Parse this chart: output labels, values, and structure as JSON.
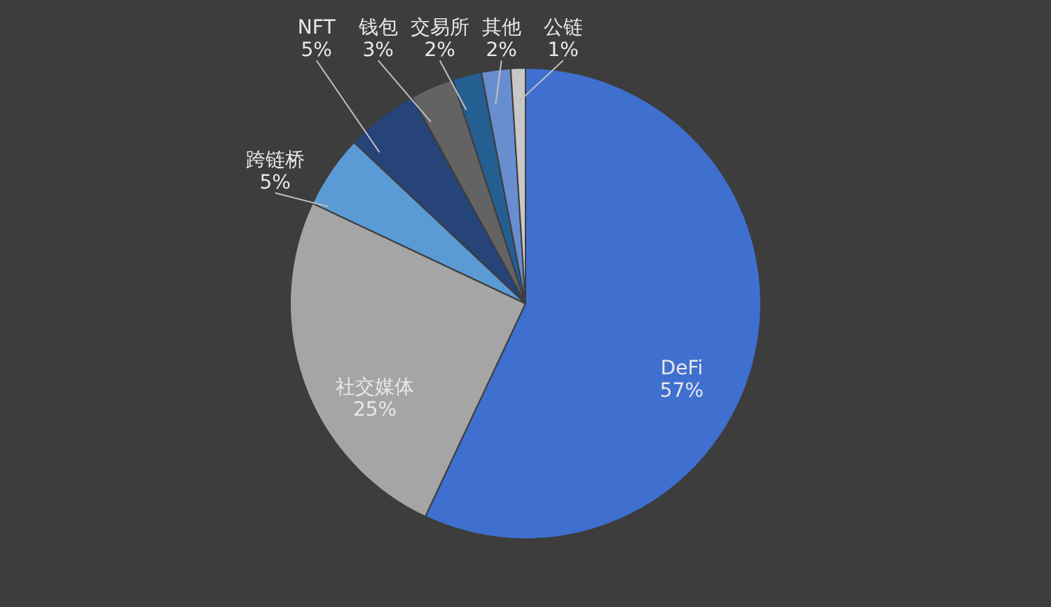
{
  "chart_data": {
    "type": "pie",
    "categories": [
      "DeFi",
      "社交媒体",
      "跨链桥",
      "NFT",
      "钱包",
      "交易所",
      "其他",
      "公链"
    ],
    "values": [
      57,
      25,
      5,
      5,
      3,
      2,
      2,
      1
    ],
    "value_labels": [
      "57%",
      "25%",
      "5%",
      "5%",
      "3%",
      "2%",
      "2%",
      "1%"
    ],
    "colors": [
      "#3f6fcf",
      "#a5a5a5",
      "#5b9bd5",
      "#264478",
      "#636363",
      "#255e91",
      "#698ed0",
      "#c8c8c8"
    ]
  }
}
